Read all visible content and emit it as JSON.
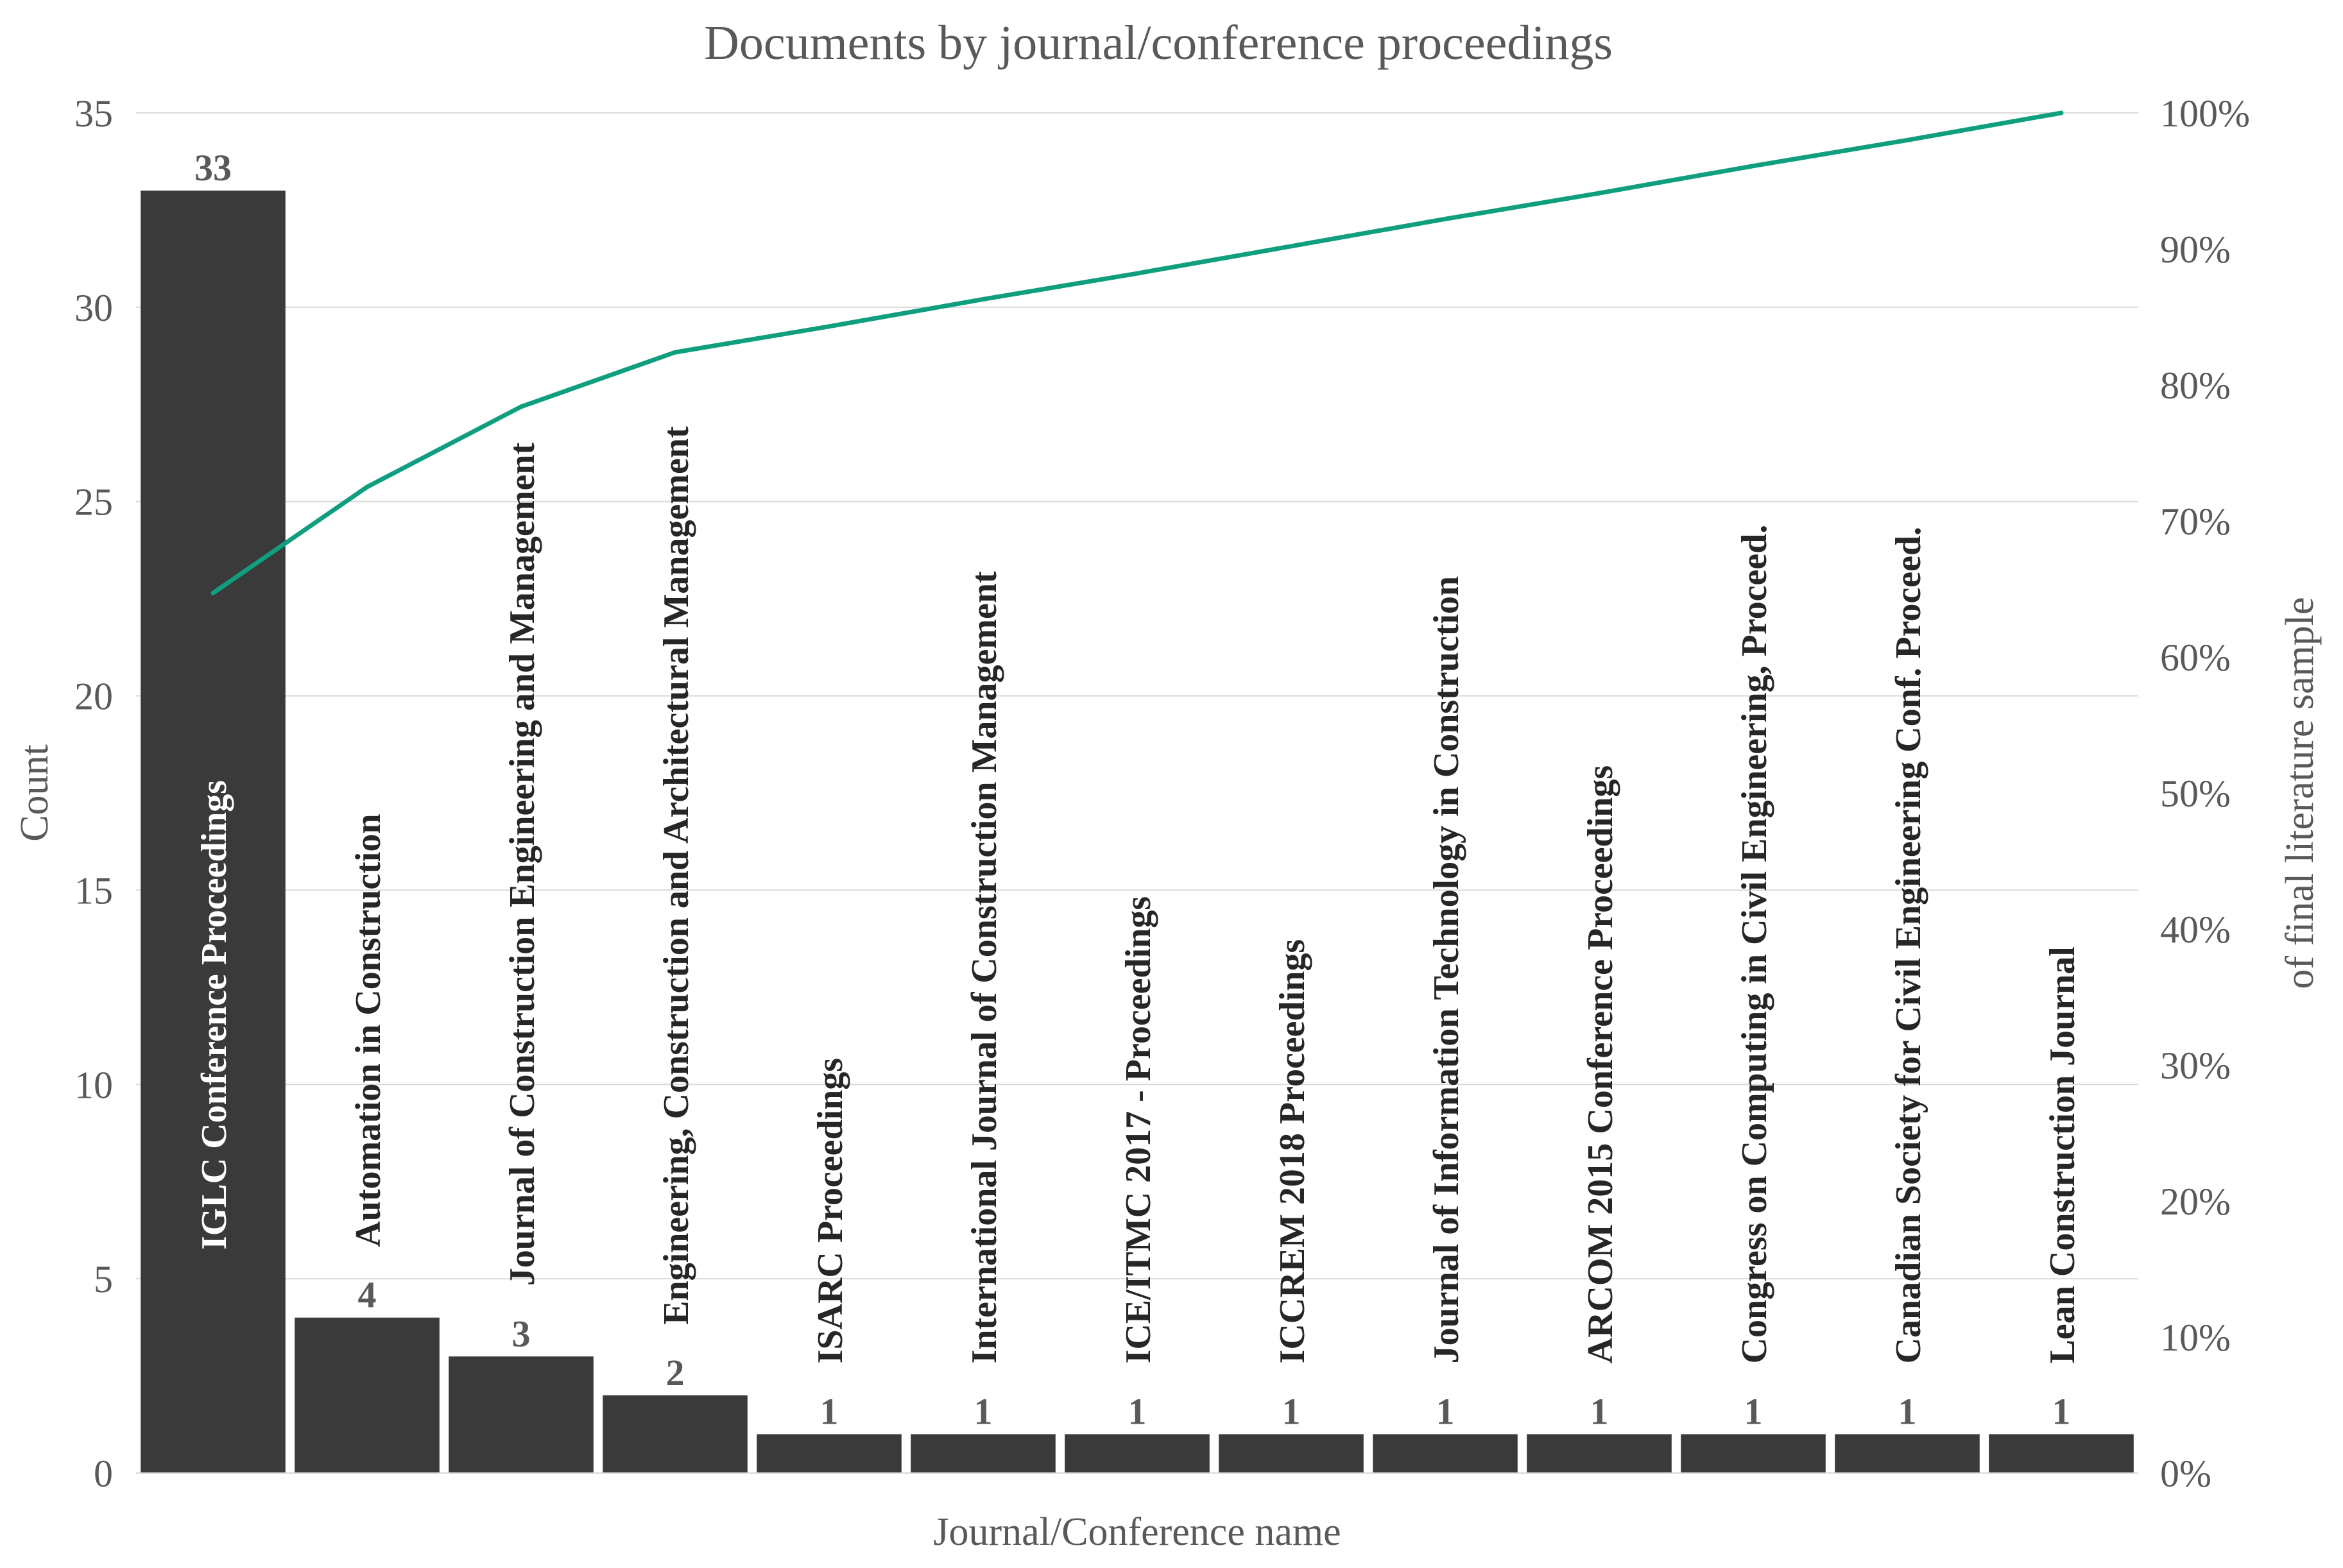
{
  "chart_data": {
    "type": "bar",
    "title": "Documents by journal/conference proceedings",
    "xlabel": "Journal/Conference name",
    "ylabel": "Count",
    "y2label": "of final literature sample",
    "ylim": [
      0,
      35
    ],
    "y2lim": [
      0,
      100
    ],
    "yticks": [
      0,
      5,
      10,
      15,
      20,
      25,
      30,
      35
    ],
    "y2ticks": [
      "0%",
      "10%",
      "20%",
      "30%",
      "40%",
      "50%",
      "60%",
      "70%",
      "80%",
      "90%",
      "100%"
    ],
    "grid": true,
    "categories": [
      "IGLC Conference Proceedings",
      "Automation in Construction",
      "Journal of Construction Engineering and Management",
      "Engineering, Construction and Architectural Management",
      "ISARC Proceedings",
      "International Journal of Construction Management",
      "ICE/ITMC 2017 - Proceedings",
      "ICCREM 2018 Proceedings",
      "Journal of Information Technology in Construction",
      "ARCOM 2015 Conference Proceedings",
      "Congress on Computing in Civil Engineering, Proceed.",
      "Canadian Society for Civil Engineering Conf. Proceed.",
      "Lean Construction Journal"
    ],
    "values": [
      33,
      4,
      3,
      2,
      1,
      1,
      1,
      1,
      1,
      1,
      1,
      1,
      1
    ],
    "series": [
      {
        "type": "bar",
        "values": [
          33,
          4,
          3,
          2,
          1,
          1,
          1,
          1,
          1,
          1,
          1,
          1,
          1
        ]
      },
      {
        "type": "line",
        "axis": "secondary",
        "values": [
          64.7,
          72.5,
          78.4,
          82.4,
          84.3,
          86.3,
          88.2,
          90.2,
          92.2,
          94.1,
          96.1,
          98.0,
          100.0
        ]
      }
    ],
    "colors": {
      "bar": "#3a3a3a",
      "line": "#0f9f7f",
      "grid": "#d9d9d9",
      "text": "#595959"
    }
  }
}
